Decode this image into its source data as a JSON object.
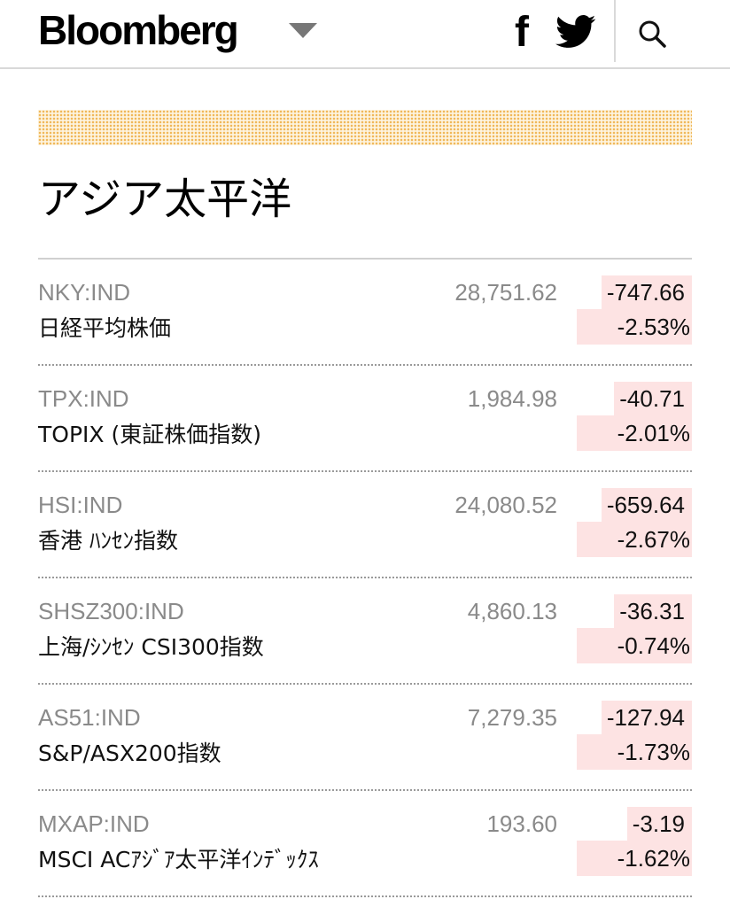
{
  "header": {
    "logo": "Bloomberg",
    "menu_icon": "caret-down-icon",
    "facebook_icon": "facebook-icon",
    "twitter_icon": "twitter-icon",
    "search_icon": "search-icon",
    "facebook_glyph": "f"
  },
  "section": {
    "title": "アジア太平洋"
  },
  "colors": {
    "negative_highlight": "#fde3e3",
    "banner_dots": "#f0b85a"
  },
  "markets": [
    {
      "code": "NKY:IND",
      "name": "日経平均株価",
      "price": "28,751.62",
      "change": "-747.66",
      "change_pct": "-2.53%"
    },
    {
      "code": "TPX:IND",
      "name": "TOPIX (東証株価指数)",
      "price": "1,984.98",
      "change": "-40.71",
      "change_pct": "-2.01%"
    },
    {
      "code": "HSI:IND",
      "name": "香港 ﾊﾝｾﾝ指数",
      "price": "24,080.52",
      "change": "-659.64",
      "change_pct": "-2.67%"
    },
    {
      "code": "SHSZ300:IND",
      "name": "上海/ｼﾝｾﾝ CSI300指数",
      "price": "4,860.13",
      "change": "-36.31",
      "change_pct": "-0.74%"
    },
    {
      "code": "AS51:IND",
      "name": "S&P/ASX200指数",
      "price": "7,279.35",
      "change": "-127.94",
      "change_pct": "-1.73%"
    },
    {
      "code": "MXAP:IND",
      "name": "MSCI ACｱｼﾞｱ太平洋ｲﾝﾃﾞｯｸｽ",
      "price": "193.60",
      "change": "-3.19",
      "change_pct": "-1.62%"
    }
  ]
}
